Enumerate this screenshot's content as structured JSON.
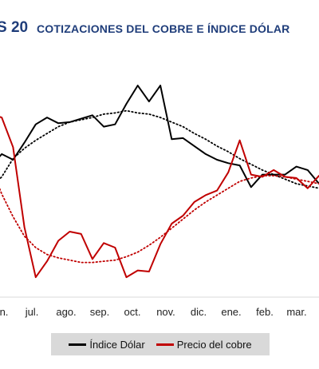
{
  "title": {
    "number": "S 20",
    "text": "COTIZACIONES DEL COBRE E ÍNDICE DÓLAR"
  },
  "colors": {
    "title": "#1f3d7a",
    "dolar": "#000000",
    "cobre": "#c00000",
    "legend_bg": "#d9d9d9"
  },
  "legend": {
    "items": [
      {
        "label": "Índice Dólar",
        "color": "#000000"
      },
      {
        "label": "Precio del cobre",
        "color": "#c00000"
      }
    ]
  },
  "chart_data": {
    "type": "line",
    "title": "COTIZACIONES DEL COBRE E ÍNDICE DÓLAR",
    "x_ticks": [
      "n.",
      "jul.",
      "ago.",
      "sep.",
      "oct.",
      "nov.",
      "dic.",
      "ene.",
      "feb.",
      "mar."
    ],
    "x": [
      "jun.",
      "jun.",
      "jun.",
      "jul.",
      "jul.",
      "jul.",
      "ago.",
      "ago.",
      "ago.",
      "sep.",
      "sep.",
      "sep.",
      "oct.",
      "oct.",
      "oct.",
      "nov.",
      "nov.",
      "nov.",
      "dic.",
      "dic.",
      "dic.",
      "ene.",
      "ene.",
      "ene.",
      "feb.",
      "feb.",
      "feb.",
      "mar.",
      "mar.",
      "mar."
    ],
    "y_scale": "unlabeled",
    "grid": false,
    "legend_position": "bottom",
    "series": [
      {
        "name": "Índice Dólar",
        "color": "#000000",
        "style": "solid",
        "values": [
          51,
          40,
          45,
          30,
          14,
          8,
          13,
          12,
          9,
          6,
          16,
          14,
          -4,
          -20,
          -6,
          -20,
          27,
          26,
          33,
          40,
          45,
          48,
          50,
          69,
          58,
          58,
          58,
          51,
          54,
          66
        ]
      },
      {
        "name": "Índice Dólar (tendencia)",
        "color": "#000000",
        "style": "dotted",
        "values": [
          70,
          60,
          44,
          35,
          28,
          22,
          16,
          12,
          10,
          8,
          5,
          4,
          2,
          4,
          5,
          8,
          12,
          16,
          22,
          27,
          33,
          38,
          44,
          49,
          54,
          58,
          62,
          66,
          68,
          70
        ]
      },
      {
        "name": "Precio del cobre",
        "color": "#c00000",
        "style": "solid",
        "values": [
          5,
          8,
          34,
          104,
          148,
          134,
          116,
          108,
          110,
          132,
          118,
          122,
          148,
          142,
          143,
          119,
          101,
          94,
          82,
          76,
          72,
          56,
          28,
          58,
          60,
          54,
          60,
          61,
          70,
          59
        ]
      },
      {
        "name": "Precio del cobre (tendencia)",
        "color": "#c00000",
        "style": "dotted",
        "values": [
          50,
          75,
          95,
          112,
          122,
          128,
          131,
          133,
          135,
          135,
          134,
          133,
          130,
          126,
          120,
          113,
          105,
          97,
          89,
          82,
          76,
          70,
          64,
          61,
          59,
          59,
          60,
          62,
          64,
          66
        ]
      }
    ]
  }
}
